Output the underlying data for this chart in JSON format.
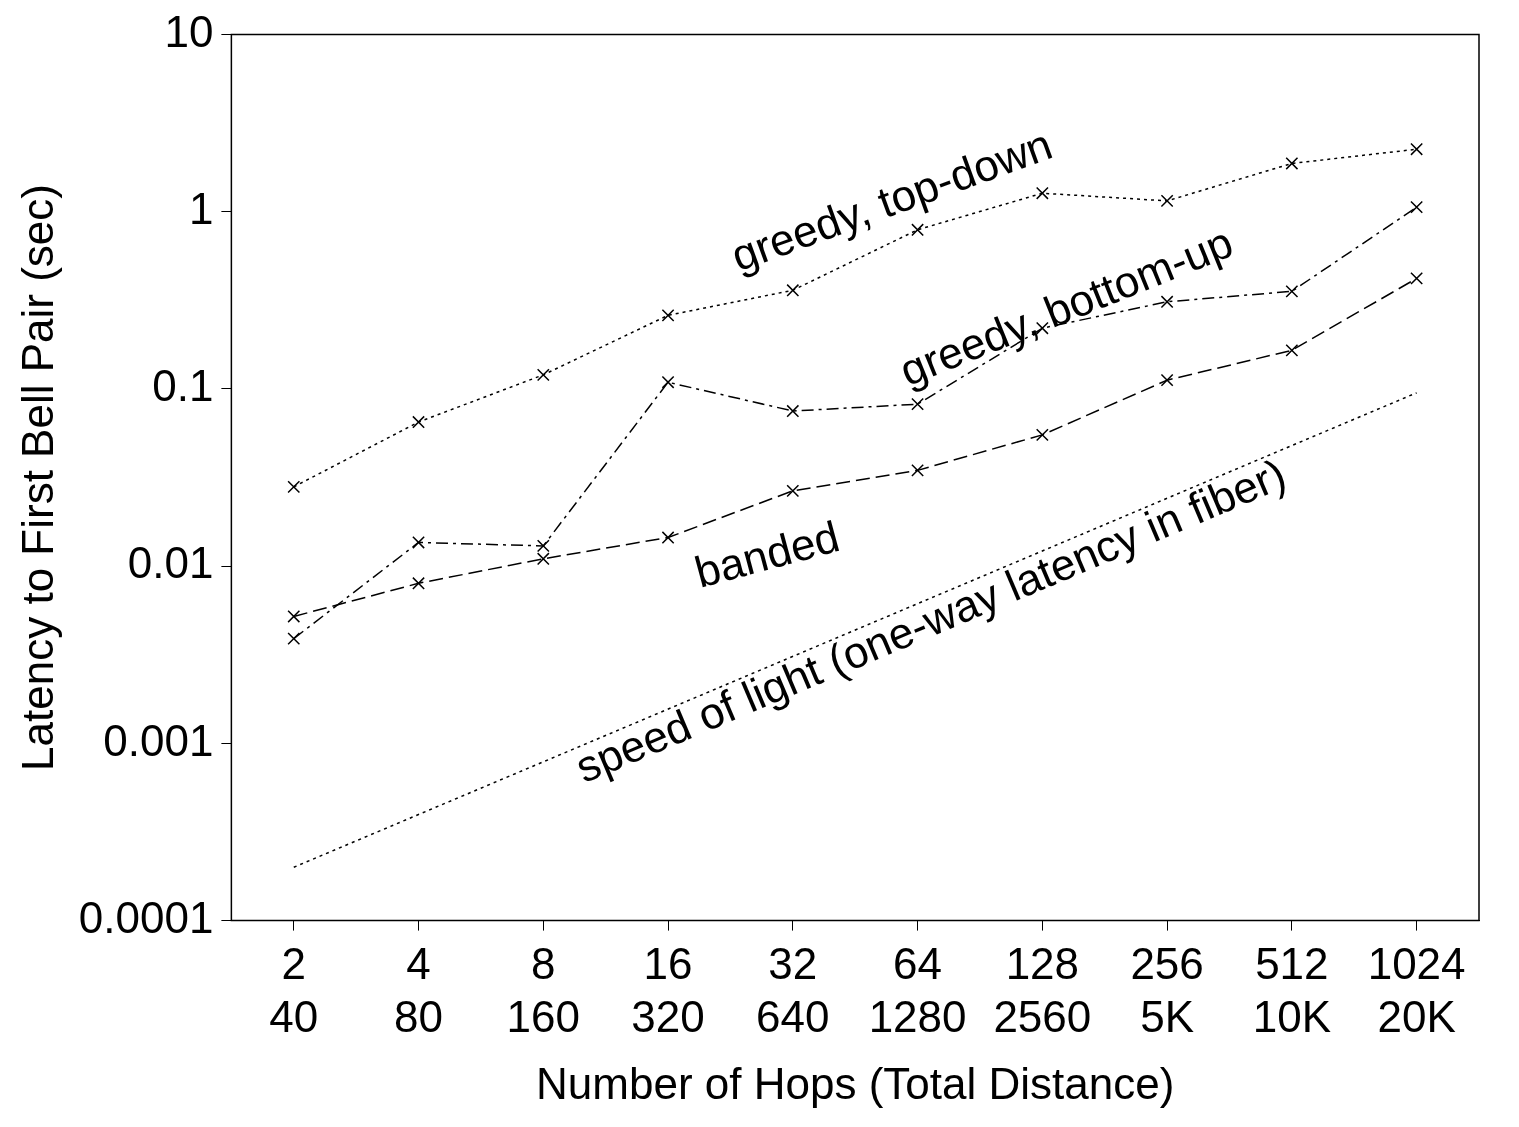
{
  "chart_data": {
    "type": "line",
    "xlabel": "Number of Hops (Total Distance)",
    "ylabel": "Latency to First Bell Pair (sec)",
    "log": true,
    "grid": false,
    "legend": false,
    "categories": [
      "2\n40",
      "4\n80",
      "8\n160",
      "16\n320",
      "32\n640",
      "64\n1280",
      "128\n2560",
      "256\n5K",
      "512\n10K",
      "1024\n20K"
    ],
    "ylim": [
      0.0001,
      10
    ],
    "yticks": [
      0.0001,
      0.001,
      0.01,
      0.1,
      1,
      10
    ],
    "series": [
      {
        "name": "greedy, top-down",
        "color": "#000000",
        "marker": "cross",
        "line_style": "dotted",
        "values": [
          0.028,
          0.065,
          0.12,
          0.26,
          0.36,
          0.79,
          1.27,
          1.15,
          1.87,
          2.25
        ]
      },
      {
        "name": "greedy, bottom-up",
        "color": "#000000",
        "marker": "cross",
        "line_style": "dashed",
        "values": [
          0.0039,
          0.0136,
          0.013,
          0.109,
          0.075,
          0.082,
          0.22,
          0.31,
          0.355,
          1.06
        ]
      },
      {
        "name": "banded",
        "color": "#000000",
        "marker": "cross",
        "line_style": "dashed",
        "values": [
          0.0052,
          0.008,
          0.011,
          0.0145,
          0.0266,
          0.0347,
          0.055,
          0.112,
          0.165,
          0.42
        ]
      },
      {
        "name": "speed of light (one-way latency in fiber)",
        "color": "#000000",
        "marker": "none",
        "line_style": "dotted",
        "values": [
          0.0002,
          null,
          null,
          null,
          null,
          null,
          null,
          null,
          null,
          0.095
        ]
      }
    ]
  }
}
